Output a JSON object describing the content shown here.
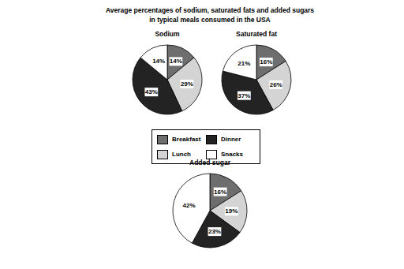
{
  "title": "Average percentages of sodium, saturated fats and added sugars in typical meals consumed in the USA",
  "legend": "center",
  "chart_data": [
    {
      "type": "pie",
      "title": "Sodium",
      "categories": [
        "Breakfast",
        "Lunch",
        "Dinner",
        "Snacks"
      ],
      "values": [
        14,
        29,
        43,
        14
      ],
      "value_labels": [
        "14%",
        "29%",
        "43%",
        "14%"
      ],
      "colors": [
        "#6e6e6e",
        "#d4d4d4",
        "#232323",
        "#ffffff"
      ],
      "data_labels": true
    },
    {
      "type": "pie",
      "title": "Saturated fat",
      "categories": [
        "Breakfast",
        "Lunch",
        "Dinner",
        "Snacks"
      ],
      "values": [
        16,
        26,
        37,
        21
      ],
      "value_labels": [
        "16%",
        "26%",
        "37%",
        "21%"
      ],
      "colors": [
        "#6e6e6e",
        "#d4d4d4",
        "#232323",
        "#ffffff"
      ],
      "data_labels": true
    },
    {
      "type": "pie",
      "title": "Added sugar",
      "categories": [
        "Breakfast",
        "Lunch",
        "Dinner",
        "Snacks"
      ],
      "values": [
        16,
        19,
        23,
        42
      ],
      "value_labels": [
        "16%",
        "19%",
        "23%",
        "42%"
      ],
      "colors": [
        "#6e6e6e",
        "#d4d4d4",
        "#232323",
        "#ffffff"
      ],
      "data_labels": true
    }
  ]
}
